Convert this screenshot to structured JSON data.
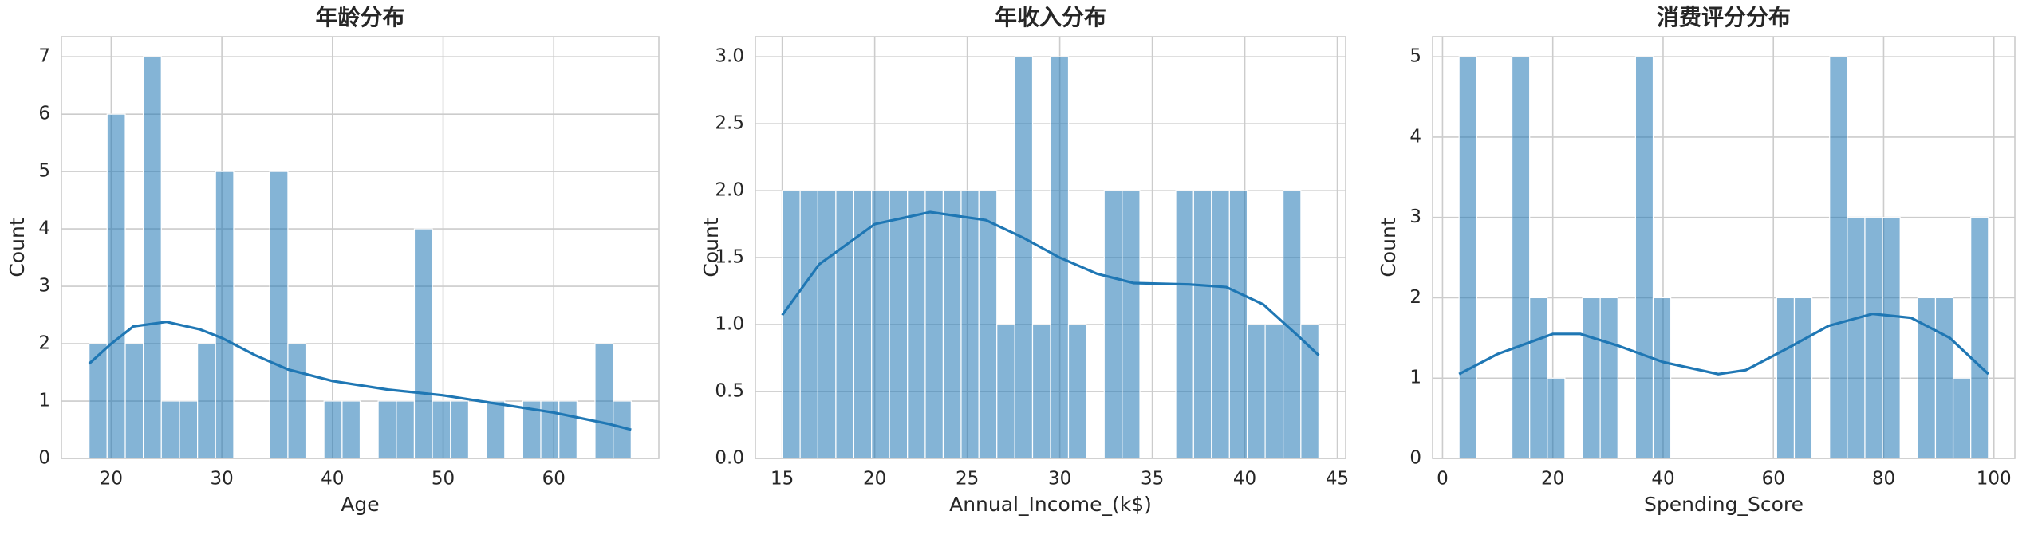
{
  "chart_data": [
    {
      "type": "histogram",
      "title": "年龄分布",
      "xlabel": "Age",
      "ylabel": "Count",
      "color": "#1f77b4",
      "grid": true,
      "bins": [
        18,
        19.63,
        21.27,
        22.9,
        24.53,
        26.17,
        27.8,
        29.43,
        31.07,
        32.7,
        34.33,
        35.97,
        37.6,
        39.23,
        40.87,
        42.5,
        44.13,
        45.77,
        47.4,
        49.03,
        50.67,
        52.3,
        53.93,
        55.57,
        57.2,
        58.83,
        60.47,
        62.1,
        63.73,
        65.37,
        67
      ],
      "values": [
        2,
        6,
        2,
        7,
        1,
        1,
        2,
        5,
        0,
        0,
        5,
        2,
        0,
        1,
        1,
        0,
        1,
        1,
        4,
        1,
        1,
        0,
        1,
        0,
        1,
        1,
        1,
        0,
        2,
        1
      ],
      "line": {
        "color": "#1f77b4",
        "x": [
          18,
          20,
          22,
          25,
          28,
          30,
          33,
          36,
          40,
          45,
          50,
          55,
          60,
          65,
          67
        ],
        "values": [
          1.65,
          2.0,
          2.3,
          2.38,
          2.25,
          2.1,
          1.8,
          1.55,
          1.35,
          1.2,
          1.1,
          0.95,
          0.8,
          0.6,
          0.5
        ]
      },
      "xlim": [
        15.5,
        69.5
      ],
      "xticks": [
        20,
        30,
        40,
        50,
        60
      ],
      "ylim": [
        0,
        7.35
      ],
      "yticks": [
        0,
        1,
        2,
        3,
        4,
        5,
        6,
        7
      ]
    },
    {
      "type": "histogram",
      "title": "年收入分布",
      "xlabel": "Annual_Income_(k$)",
      "ylabel": "Count",
      "color": "#1f77b4",
      "grid": true,
      "bins": [
        15,
        15.97,
        16.93,
        17.9,
        18.87,
        19.83,
        20.8,
        21.77,
        22.73,
        23.7,
        24.67,
        25.63,
        26.6,
        27.57,
        28.53,
        29.5,
        30.47,
        31.43,
        32.4,
        33.37,
        34.33,
        35.3,
        36.27,
        37.23,
        38.2,
        39.17,
        40.13,
        41.1,
        42.07,
        43.03,
        44
      ],
      "values": [
        2,
        2,
        2,
        2,
        2,
        2,
        2,
        2,
        2,
        2,
        2,
        2,
        1,
        3,
        1,
        3,
        1,
        0,
        2,
        2,
        0,
        0,
        2,
        2,
        2,
        2,
        1,
        1,
        2,
        1
      ],
      "line": {
        "color": "#1f77b4",
        "x": [
          15,
          17,
          20,
          23,
          26,
          28,
          30,
          32,
          34,
          37,
          39,
          41,
          43,
          44
        ],
        "values": [
          1.07,
          1.45,
          1.75,
          1.84,
          1.78,
          1.65,
          1.5,
          1.38,
          1.31,
          1.3,
          1.28,
          1.15,
          0.9,
          0.77
        ]
      },
      "xlim": [
        13.55,
        45.45
      ],
      "xticks": [
        15,
        20,
        25,
        30,
        35,
        40,
        45
      ],
      "ylim": [
        0,
        3.15
      ],
      "yticks": [
        {
          "value": 0,
          "label": "0.0"
        },
        0.5,
        {
          "value": 1,
          "label": "1.0"
        },
        1.5,
        {
          "value": 2,
          "label": "2.0"
        },
        2.5,
        {
          "value": 3,
          "label": "3.0"
        }
      ]
    },
    {
      "type": "histogram",
      "title": "消费评分分布",
      "xlabel": "Spending_Score",
      "ylabel": "Count",
      "color": "#1f77b4",
      "grid": true,
      "bins": [
        3,
        6.2,
        9.4,
        12.6,
        15.8,
        19,
        22.2,
        25.4,
        28.6,
        31.8,
        35,
        38.2,
        41.4,
        44.6,
        47.8,
        51,
        54.2,
        57.4,
        60.6,
        63.8,
        67,
        70.2,
        73.4,
        76.6,
        79.8,
        83,
        86.2,
        89.4,
        92.6,
        95.8,
        99
      ],
      "values": [
        5,
        0,
        0,
        5,
        2,
        1,
        0,
        2,
        2,
        0,
        5,
        2,
        0,
        0,
        0,
        0,
        0,
        0,
        2,
        2,
        0,
        5,
        3,
        3,
        3,
        0,
        2,
        2,
        1,
        3
      ],
      "line": {
        "color": "#1f77b4",
        "x": [
          3,
          10,
          20,
          25,
          32,
          40,
          50,
          55,
          62,
          70,
          78,
          85,
          92,
          99
        ],
        "values": [
          1.05,
          1.3,
          1.55,
          1.55,
          1.4,
          1.2,
          1.05,
          1.1,
          1.35,
          1.65,
          1.8,
          1.75,
          1.5,
          1.05
        ]
      },
      "xlim": [
        -1.8,
        103.8
      ],
      "xticks": [
        0,
        20,
        40,
        60,
        80,
        100
      ],
      "ylim": [
        0,
        5.25
      ],
      "yticks": [
        0,
        1,
        2,
        3,
        4,
        5
      ]
    }
  ]
}
